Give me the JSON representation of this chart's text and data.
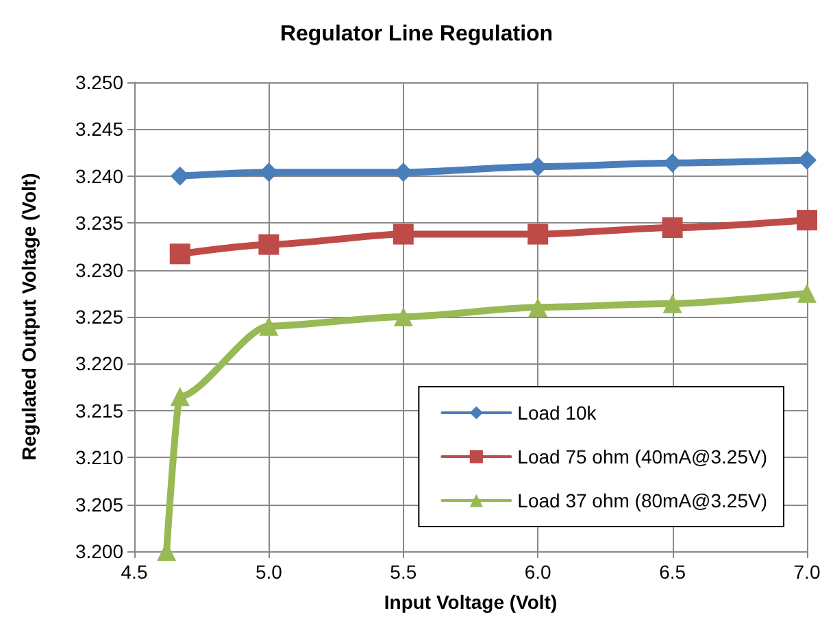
{
  "chart_data": {
    "type": "line",
    "title": "Regulator Line Regulation",
    "xlabel": "Input Voltage (Volt)",
    "ylabel": "Regulated Output Voltage (Volt)",
    "xlim": [
      4.5,
      7.0
    ],
    "xticks": [
      {
        "value": 4.5,
        "label": "4.5"
      },
      {
        "value": 5,
        "label": "5.0"
      },
      {
        "value": 5.5,
        "label": "5.5"
      },
      {
        "value": 6,
        "label": "6.0"
      },
      {
        "value": 6.5,
        "label": "6.5"
      },
      {
        "value": 7,
        "label": "7.0"
      }
    ],
    "ylim": [
      3.2,
      3.25
    ],
    "yticks": [
      {
        "value": 3.2,
        "label": "3.200"
      },
      {
        "value": 3.205,
        "label": "3.205"
      },
      {
        "value": 3.21,
        "label": "3.210"
      },
      {
        "value": 3.215,
        "label": "3.215"
      },
      {
        "value": 3.22,
        "label": "3.220"
      },
      {
        "value": 3.225,
        "label": "3.225"
      },
      {
        "value": 3.23,
        "label": "3.230"
      },
      {
        "value": 3.235,
        "label": "3.235"
      },
      {
        "value": 3.24,
        "label": "3.240"
      },
      {
        "value": 3.245,
        "label": "3.245"
      },
      {
        "value": 3.25,
        "label": "3.250"
      }
    ],
    "grid": true,
    "legend": "bottom right",
    "series": [
      {
        "name": "Load 10k",
        "color": "#4a7ebb",
        "marker": "diamond",
        "x": [
          4.67,
          5.0,
          5.5,
          6.0,
          6.5,
          7.0
        ],
        "values": [
          3.24,
          3.2404,
          3.2404,
          3.241,
          3.2414,
          3.2417
        ]
      },
      {
        "name": "Load 75 ohm (40mA@3.25V)",
        "color": "#be4b48",
        "marker": "square",
        "x": [
          4.67,
          5.0,
          5.5,
          6.0,
          6.5,
          7.0
        ],
        "values": [
          3.2317,
          3.2327,
          3.2338,
          3.2338,
          3.2345,
          3.2353
        ]
      },
      {
        "name": "Load 37 ohm (80mA@3.25V)",
        "color": "#98b954",
        "marker": "triangle",
        "x": [
          4.62,
          4.67,
          5.0,
          5.5,
          6.0,
          6.5,
          7.0
        ],
        "values": [
          3.2,
          3.2165,
          3.224,
          3.225,
          3.226,
          3.2264,
          3.2275
        ]
      }
    ]
  }
}
